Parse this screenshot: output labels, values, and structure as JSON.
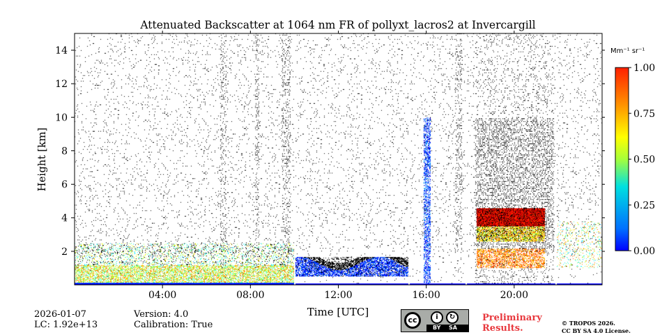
{
  "chart_data": {
    "type": "heatmap",
    "title": "Attenuated Backscatter at 1064 nm FR of pollyxt_lacros2 at Invercargill",
    "xlabel": "Time [UTC]",
    "ylabel": "Height [km]",
    "xlim": [
      0,
      24
    ],
    "ylim": [
      0,
      15
    ],
    "x_ticks": [
      {
        "value": 4,
        "label": "04:00"
      },
      {
        "value": 8,
        "label": "08:00"
      },
      {
        "value": 12,
        "label": "12:00"
      },
      {
        "value": 16,
        "label": "16:00"
      },
      {
        "value": 20,
        "label": "20:00"
      }
    ],
    "y_ticks": [
      {
        "value": 2,
        "label": "2"
      },
      {
        "value": 4,
        "label": "4"
      },
      {
        "value": 6,
        "label": "6"
      },
      {
        "value": 8,
        "label": "8"
      },
      {
        "value": 10,
        "label": "10"
      },
      {
        "value": 12,
        "label": "12"
      },
      {
        "value": 14,
        "label": "14"
      }
    ],
    "colorbar": {
      "unit": "Mm⁻¹ sr⁻¹",
      "range": [
        0,
        1
      ],
      "colormap": "jet",
      "ticks": [
        {
          "value": 0.0,
          "label": "0.00"
        },
        {
          "value": 0.25,
          "label": "0.25"
        },
        {
          "value": 0.5,
          "label": "0.50"
        },
        {
          "value": 0.75,
          "label": "0.75"
        },
        {
          "value": 1.0,
          "label": "1.00"
        }
      ]
    },
    "data_gaps_utc": [
      10.0,
      15.2,
      17.8,
      21.9
    ],
    "features": [
      {
        "name": "aerosol layer",
        "t_start": 0.0,
        "t_end": 10.0,
        "h_bottom": 0.0,
        "h_top": 2.5,
        "level": 0.5
      },
      {
        "name": "dense low cloud",
        "t_start": 10.0,
        "t_end": 15.2,
        "h_bottom": 0.5,
        "h_top": 1.7,
        "level": 0.1
      },
      {
        "name": "elevated layer",
        "t_start": 18.3,
        "t_end": 21.4,
        "h_bottom": 1.0,
        "h_top": 4.6,
        "level": 0.8
      },
      {
        "name": "virga streak",
        "t_start": 15.9,
        "t_end": 16.2,
        "h_bottom": 0.0,
        "h_top": 10.0,
        "level": 0.05
      }
    ]
  },
  "footer": {
    "date": "2026-01-07",
    "lc": "LC: 1.92e+13",
    "version": "Version: 4.0",
    "calibration": "Calibration: True",
    "preliminary_line1": "Preliminary",
    "preliminary_line2": "Results.",
    "copyright_line1": "© TROPOS 2026.",
    "copyright_line2": "CC BY SA 4.0 License.",
    "license_badge": {
      "cc": "cc",
      "by": "BY",
      "sa": "SA"
    }
  },
  "colors": {
    "nodata": "#ffffff",
    "noise": "#000000",
    "preliminary": "#e8383d",
    "badge_gray": "#a9aca8"
  }
}
